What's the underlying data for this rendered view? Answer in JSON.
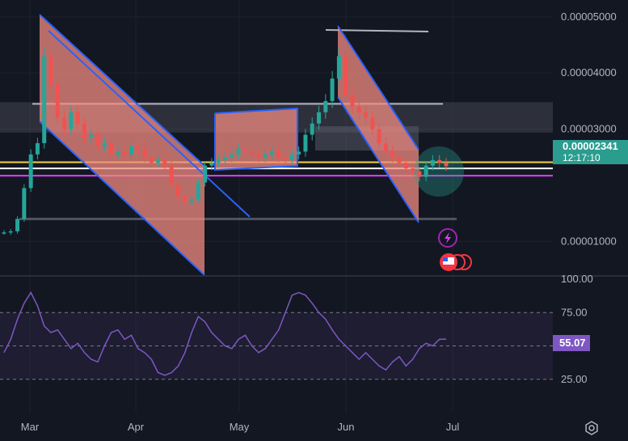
{
  "chart_data": [
    {
      "type": "candlestick",
      "x_ticks": [
        "Mar",
        "Apr",
        "May",
        "Jun",
        "Jul"
      ],
      "y_ticks": [
        "0.00005000",
        "0.00004000",
        "0.00003000",
        "0.00001000"
      ],
      "ylim": [
        4e-06,
        5.3e-05
      ],
      "last_price": "0.00002341",
      "countdown": "12:17:10",
      "horizontal_levels": [
        {
          "value": 2.41e-05,
          "color": "#f5d142"
        },
        {
          "value": 2.3e-05,
          "color": "#ffffff"
        },
        {
          "value": 2.17e-05,
          "color": "#e040fb"
        },
        {
          "value": 3.45e-05,
          "color": "#b2b5be"
        },
        {
          "value": 1.4e-05,
          "color": "#787b86"
        }
      ],
      "zones": [
        {
          "from": 2.94e-05,
          "to": 3.48e-05,
          "color": "#434651"
        }
      ],
      "series": [
        {
          "values": [
            1.16e-05,
            1.18e-05,
            1.4e-05,
            1.95e-05,
            2.55e-05,
            2.75e-05,
            4.3e-05,
            3.8e-05,
            3.2e-05,
            3e-05,
            3.3e-05,
            3.1e-05,
            2.85e-05,
            2.9e-05,
            2.7e-05,
            2.75e-05,
            2.55e-05,
            2.6e-05,
            2.55e-05,
            2.7e-05,
            2.65e-05,
            2.5e-05,
            2.4e-05,
            2.45e-05,
            2.35e-05,
            2e-05,
            1.8e-05,
            1.7e-05,
            1.75e-05,
            2.05e-05,
            2.35e-05,
            2.4e-05,
            2.45e-05,
            2.5e-05,
            2.55e-05,
            2.65e-05,
            2.6e-05,
            2.55e-05,
            2.5e-05,
            2.55e-05,
            2.6e-05,
            2.5e-05,
            2.45e-05,
            2.55e-05,
            2.6e-05,
            2.9e-05,
            3.1e-05,
            3.3e-05,
            3.5e-05,
            3.9e-05,
            4.3e-05,
            3.6e-05,
            3.4e-05,
            3.3e-05,
            3.2e-05,
            3e-05,
            2.75e-05,
            2.6e-05,
            2.5e-05,
            2.4e-05,
            2.3e-05,
            2.25e-05,
            2.15e-05,
            2.35e-05,
            2.45e-05,
            2.4e-05,
            2.34e-05
          ]
        }
      ]
    },
    {
      "type": "line",
      "y_ticks": [
        "100.00",
        "75.00",
        "50.00",
        "25.00"
      ],
      "ylim": [
        0,
        100
      ],
      "last_value": "55.07",
      "series": [
        {
          "color": "#7e57c2",
          "values": [
            45,
            55,
            70,
            82,
            90,
            80,
            65,
            60,
            62,
            55,
            48,
            52,
            45,
            40,
            38,
            50,
            60,
            62,
            55,
            58,
            48,
            45,
            40,
            30,
            28,
            30,
            35,
            45,
            60,
            72,
            68,
            60,
            55,
            50,
            48,
            55,
            58,
            50,
            45,
            48,
            55,
            62,
            75,
            88,
            90,
            88,
            82,
            75,
            70,
            62,
            55,
            50,
            45,
            40,
            45,
            40,
            35,
            32,
            38,
            42,
            35,
            40,
            48,
            52,
            50,
            55,
            55
          ]
        }
      ]
    }
  ]
}
